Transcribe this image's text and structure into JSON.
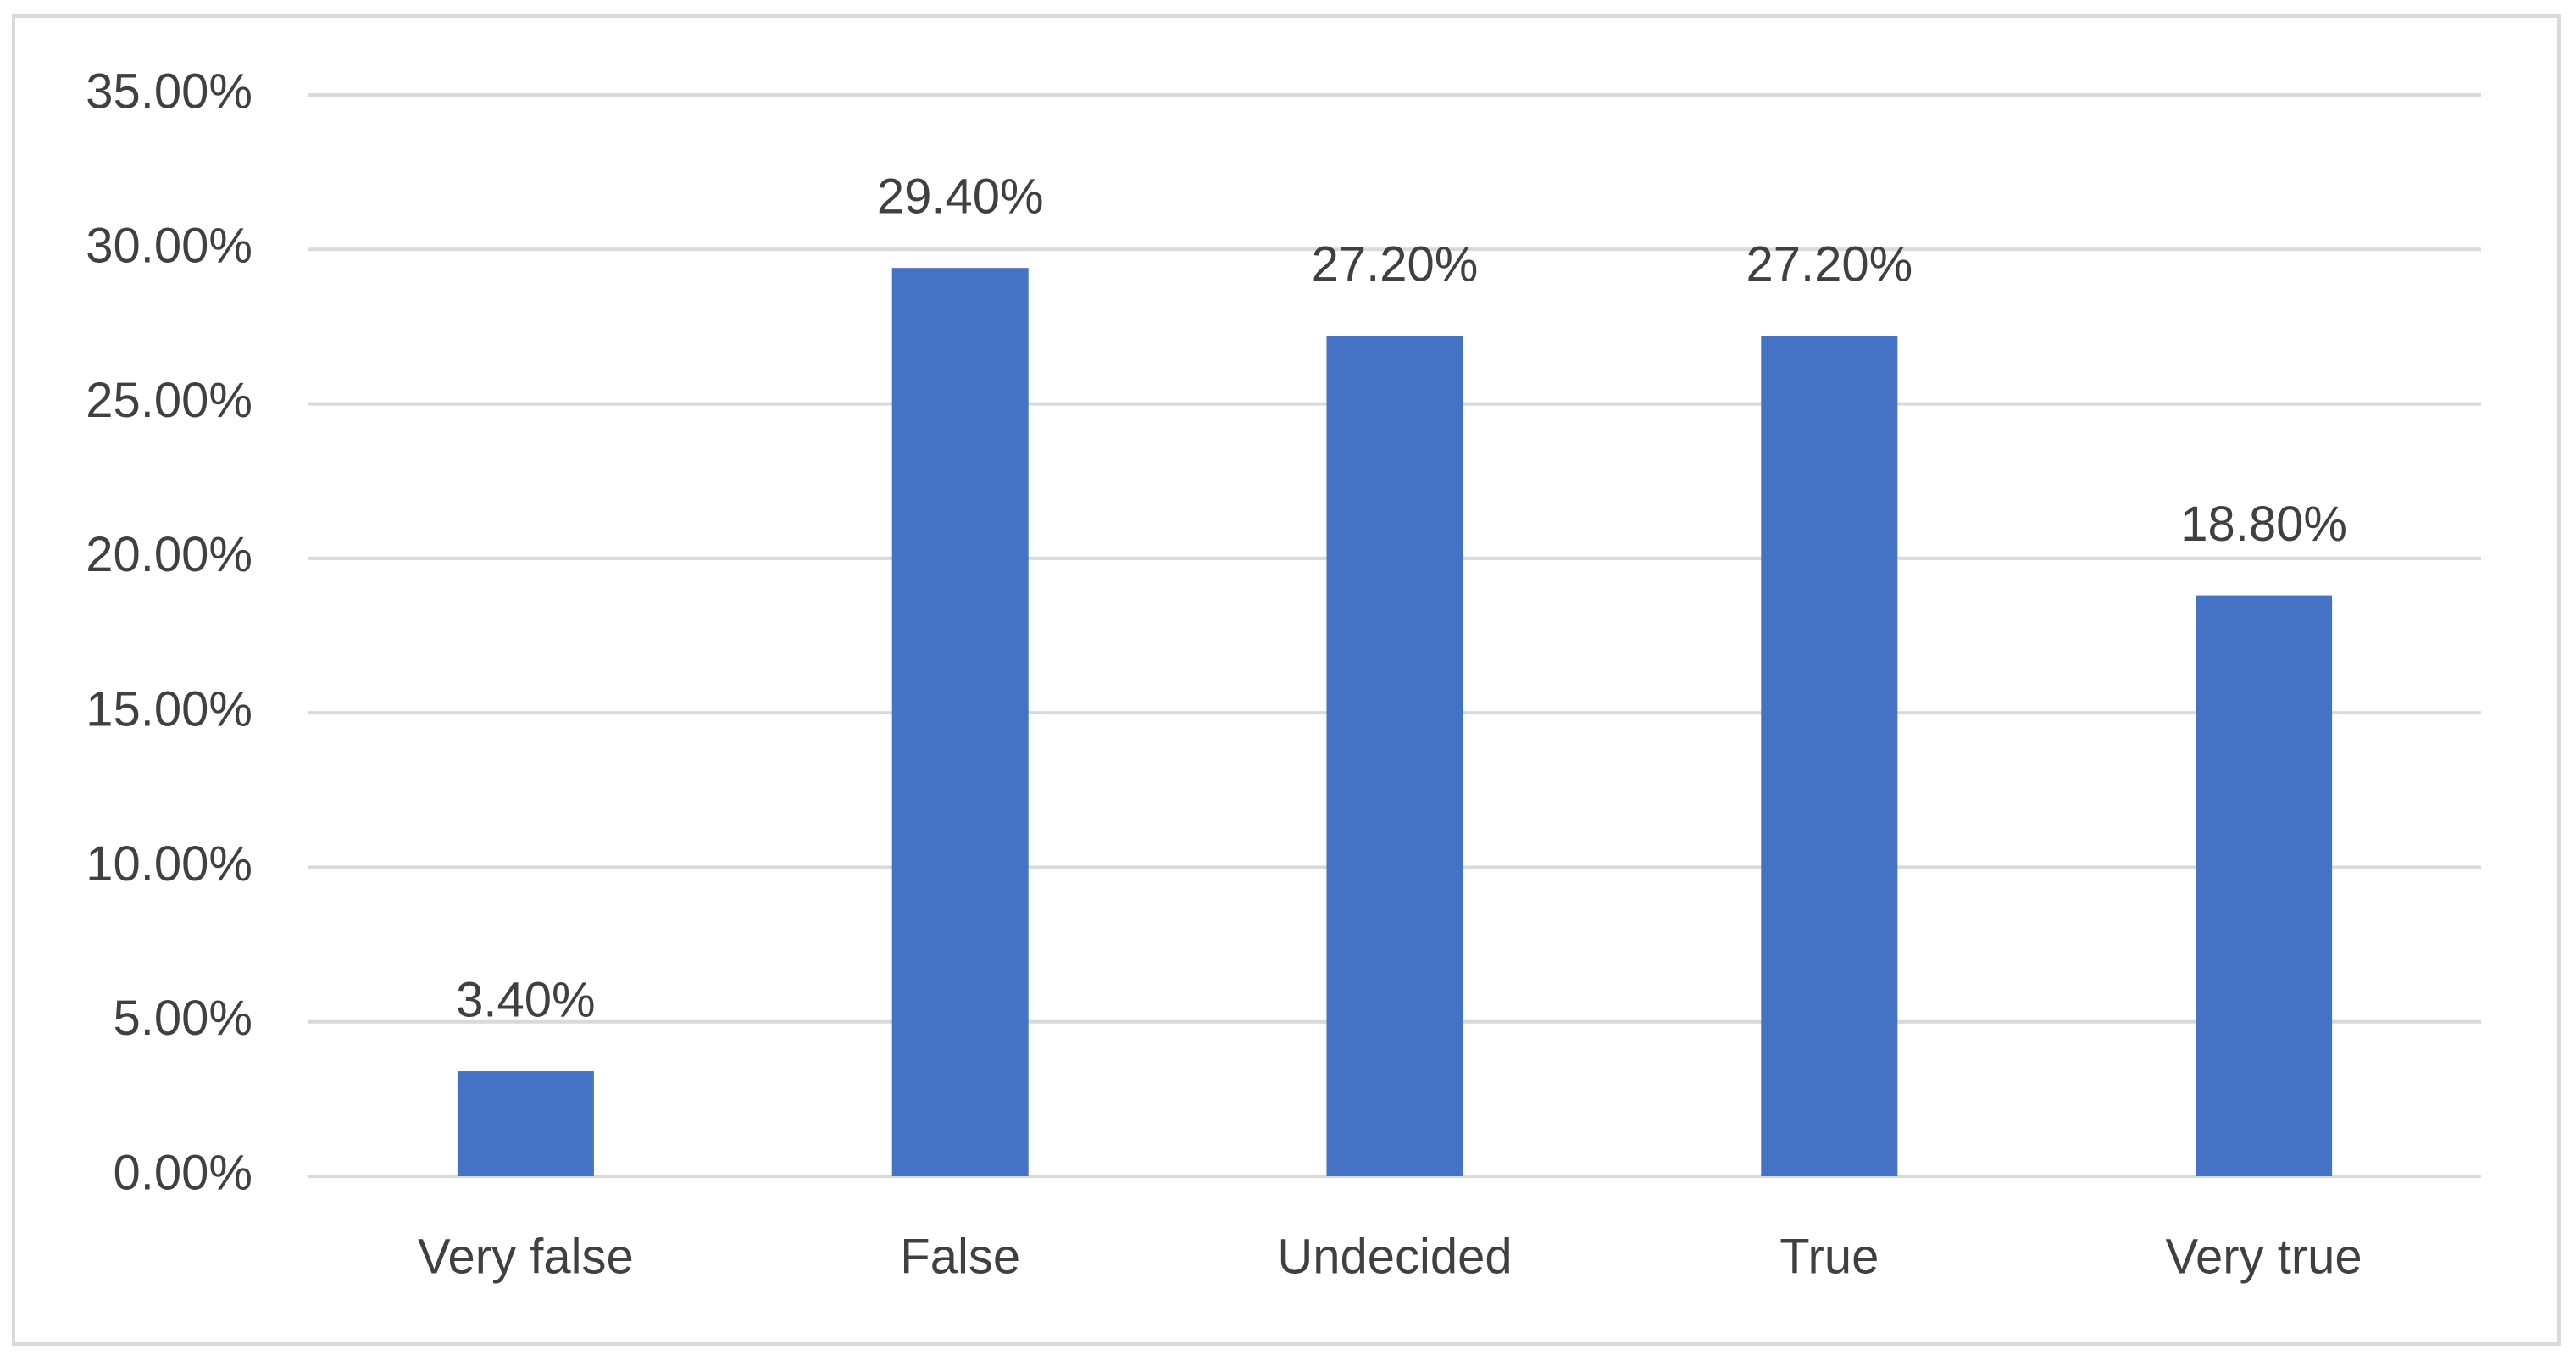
{
  "chart_data": {
    "type": "bar",
    "categories": [
      "Very false",
      "False",
      "Undecided",
      "True",
      "Very true"
    ],
    "values": [
      3.4,
      29.4,
      27.2,
      27.2,
      18.8
    ],
    "value_labels": [
      "3.40%",
      "29.40%",
      "27.20%",
      "27.20%",
      "18.80%"
    ],
    "color": "#4472c4",
    "ylim": [
      0,
      35
    ],
    "yticks": [
      {
        "value": 0,
        "label": "0.00%"
      },
      {
        "value": 5,
        "label": "5.00%"
      },
      {
        "value": 10,
        "label": "10.00%"
      },
      {
        "value": 15,
        "label": "15.00%"
      },
      {
        "value": 20,
        "label": "20.00%"
      },
      {
        "value": 25,
        "label": "25.00%"
      },
      {
        "value": 30,
        "label": "30.00%"
      },
      {
        "value": 35,
        "label": "35.00%"
      }
    ],
    "grid": true
  }
}
